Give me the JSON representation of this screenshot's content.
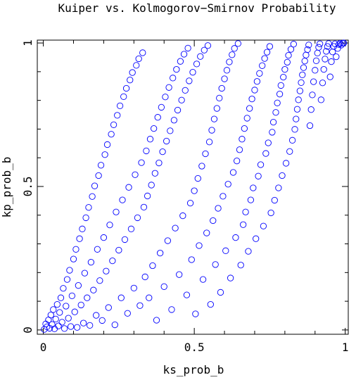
{
  "chart_data": {
    "type": "scatter",
    "title": "Kuiper vs. Kolmogorov−Smirnov Probability",
    "xlabel": "ks_prob_b",
    "ylabel": "kp_prob_b",
    "xlim": [
      -0.02,
      1.01
    ],
    "ylim": [
      -0.015,
      1.01
    ],
    "xticks": [
      {
        "value": 0,
        "label": "0"
      },
      {
        "value": 0.5,
        "label": "0.5"
      },
      {
        "value": 1,
        "label": "1"
      }
    ],
    "yticks": [
      {
        "value": 0,
        "label": "0"
      },
      {
        "value": 0.5,
        "label": "0.5"
      },
      {
        "value": 1,
        "label": "1"
      }
    ],
    "marker": "open-circle",
    "point_color": "#0000ff",
    "grid": false,
    "legend": "none",
    "points": [
      [
        0.003,
        0.002
      ],
      [
        0.008,
        0.021
      ],
      [
        0.012,
        0.011
      ],
      [
        0.017,
        0.035
      ],
      [
        0.021,
        0.006
      ],
      [
        0.025,
        0.052
      ],
      [
        0.029,
        0.019
      ],
      [
        0.033,
        0.071
      ],
      [
        0.037,
        0.004
      ],
      [
        0.041,
        0.038
      ],
      [
        0.046,
        0.089
      ],
      [
        0.05,
        0.014
      ],
      [
        0.054,
        0.061
      ],
      [
        0.058,
        0.112
      ],
      [
        0.062,
        0.027
      ],
      [
        0.066,
        0.145
      ],
      [
        0.07,
        0.005
      ],
      [
        0.075,
        0.083
      ],
      [
        0.079,
        0.176
      ],
      [
        0.083,
        0.041
      ],
      [
        0.087,
        0.208
      ],
      [
        0.091,
        0.012
      ],
      [
        0.095,
        0.119
      ],
      [
        0.1,
        0.247
      ],
      [
        0.104,
        0.063
      ],
      [
        0.108,
        0.281
      ],
      [
        0.112,
        0.009
      ],
      [
        0.116,
        0.155
      ],
      [
        0.12,
        0.318
      ],
      [
        0.125,
        0.087
      ],
      [
        0.129,
        0.352
      ],
      [
        0.133,
        0.024
      ],
      [
        0.137,
        0.198
      ],
      [
        0.141,
        0.391
      ],
      [
        0.145,
        0.112
      ],
      [
        0.15,
        0.427
      ],
      [
        0.154,
        0.016
      ],
      [
        0.158,
        0.236
      ],
      [
        0.162,
        0.465
      ],
      [
        0.166,
        0.139
      ],
      [
        0.17,
        0.502
      ],
      [
        0.175,
        0.051
      ],
      [
        0.179,
        0.281
      ],
      [
        0.183,
        0.538
      ],
      [
        0.187,
        0.172
      ],
      [
        0.191,
        0.574
      ],
      [
        0.195,
        0.033
      ],
      [
        0.2,
        0.322
      ],
      [
        0.204,
        0.611
      ],
      [
        0.208,
        0.205
      ],
      [
        0.212,
        0.646
      ],
      [
        0.216,
        0.078
      ],
      [
        0.22,
        0.366
      ],
      [
        0.225,
        0.682
      ],
      [
        0.229,
        0.241
      ],
      [
        0.233,
        0.715
      ],
      [
        0.237,
        0.018
      ],
      [
        0.241,
        0.411
      ],
      [
        0.245,
        0.748
      ],
      [
        0.25,
        0.278
      ],
      [
        0.254,
        0.781
      ],
      [
        0.258,
        0.112
      ],
      [
        0.262,
        0.453
      ],
      [
        0.266,
        0.813
      ],
      [
        0.27,
        0.315
      ],
      [
        0.275,
        0.842
      ],
      [
        0.279,
        0.058
      ],
      [
        0.283,
        0.497
      ],
      [
        0.287,
        0.871
      ],
      [
        0.291,
        0.352
      ],
      [
        0.295,
        0.897
      ],
      [
        0.3,
        0.146
      ],
      [
        0.304,
        0.541
      ],
      [
        0.308,
        0.922
      ],
      [
        0.312,
        0.391
      ],
      [
        0.316,
        0.945
      ],
      [
        0.32,
        0.085
      ],
      [
        0.325,
        0.583
      ],
      [
        0.329,
        0.966
      ],
      [
        0.333,
        0.428
      ],
      [
        0.337,
        0.185
      ],
      [
        0.341,
        0.624
      ],
      [
        0.345,
        0.467
      ],
      [
        0.35,
        0.112
      ],
      [
        0.354,
        0.665
      ],
      [
        0.358,
        0.505
      ],
      [
        0.362,
        0.224
      ],
      [
        0.366,
        0.702
      ],
      [
        0.37,
        0.546
      ],
      [
        0.375,
        0.034
      ],
      [
        0.379,
        0.741
      ],
      [
        0.383,
        0.582
      ],
      [
        0.387,
        0.268
      ],
      [
        0.391,
        0.776
      ],
      [
        0.395,
        0.621
      ],
      [
        0.4,
        0.151
      ],
      [
        0.404,
        0.812
      ],
      [
        0.408,
        0.658
      ],
      [
        0.412,
        0.311
      ],
      [
        0.416,
        0.845
      ],
      [
        0.42,
        0.694
      ],
      [
        0.425,
        0.071
      ],
      [
        0.429,
        0.878
      ],
      [
        0.433,
        0.731
      ],
      [
        0.437,
        0.355
      ],
      [
        0.441,
        0.908
      ],
      [
        0.445,
        0.766
      ],
      [
        0.45,
        0.193
      ],
      [
        0.454,
        0.936
      ],
      [
        0.458,
        0.801
      ],
      [
        0.462,
        0.398
      ],
      [
        0.466,
        0.961
      ],
      [
        0.47,
        0.835
      ],
      [
        0.475,
        0.122
      ],
      [
        0.479,
        0.982
      ],
      [
        0.483,
        0.868
      ],
      [
        0.487,
        0.442
      ],
      [
        0.491,
        0.245
      ],
      [
        0.495,
        0.898
      ],
      [
        0.5,
        0.485
      ],
      [
        0.504,
        0.056
      ],
      [
        0.508,
        0.927
      ],
      [
        0.512,
        0.528
      ],
      [
        0.516,
        0.294
      ],
      [
        0.52,
        0.953
      ],
      [
        0.525,
        0.571
      ],
      [
        0.529,
        0.176
      ],
      [
        0.533,
        0.975
      ],
      [
        0.537,
        0.614
      ],
      [
        0.541,
        0.338
      ],
      [
        0.545,
        0.991
      ],
      [
        0.55,
        0.655
      ],
      [
        0.554,
        0.089
      ],
      [
        0.558,
        0.696
      ],
      [
        0.562,
        0.381
      ],
      [
        0.566,
        0.735
      ],
      [
        0.57,
        0.228
      ],
      [
        0.575,
        0.772
      ],
      [
        0.579,
        0.424
      ],
      [
        0.583,
        0.808
      ],
      [
        0.587,
        0.131
      ],
      [
        0.591,
        0.842
      ],
      [
        0.595,
        0.466
      ],
      [
        0.6,
        0.875
      ],
      [
        0.604,
        0.276
      ],
      [
        0.608,
        0.905
      ],
      [
        0.612,
        0.508
      ],
      [
        0.616,
        0.934
      ],
      [
        0.62,
        0.181
      ],
      [
        0.625,
        0.959
      ],
      [
        0.629,
        0.549
      ],
      [
        0.633,
        0.981
      ],
      [
        0.637,
        0.322
      ],
      [
        0.641,
        0.589
      ],
      [
        0.645,
        0.998
      ],
      [
        0.65,
        0.628
      ],
      [
        0.654,
        0.226
      ],
      [
        0.658,
        0.665
      ],
      [
        0.662,
        0.367
      ],
      [
        0.666,
        0.702
      ],
      [
        0.67,
        0.411
      ],
      [
        0.675,
        0.738
      ],
      [
        0.679,
        0.274
      ],
      [
        0.683,
        0.772
      ],
      [
        0.687,
        0.453
      ],
      [
        0.691,
        0.805
      ],
      [
        0.695,
        0.495
      ],
      [
        0.7,
        0.836
      ],
      [
        0.704,
        0.318
      ],
      [
        0.708,
        0.866
      ],
      [
        0.712,
        0.536
      ],
      [
        0.716,
        0.894
      ],
      [
        0.72,
        0.576
      ],
      [
        0.725,
        0.921
      ],
      [
        0.729,
        0.362
      ],
      [
        0.733,
        0.946
      ],
      [
        0.737,
        0.615
      ],
      [
        0.741,
        0.968
      ],
      [
        0.745,
        0.652
      ],
      [
        0.75,
        0.988
      ],
      [
        0.754,
        0.408
      ],
      [
        0.758,
        0.689
      ],
      [
        0.762,
        0.724
      ],
      [
        0.766,
        0.452
      ],
      [
        0.77,
        0.758
      ],
      [
        0.775,
        0.791
      ],
      [
        0.779,
        0.495
      ],
      [
        0.783,
        0.822
      ],
      [
        0.787,
        0.852
      ],
      [
        0.791,
        0.538
      ],
      [
        0.795,
        0.881
      ],
      [
        0.8,
        0.908
      ],
      [
        0.804,
        0.581
      ],
      [
        0.808,
        0.933
      ],
      [
        0.812,
        0.957
      ],
      [
        0.816,
        0.622
      ],
      [
        0.82,
        0.978
      ],
      [
        0.825,
        0.661
      ],
      [
        0.829,
        0.996
      ],
      [
        0.833,
        0.699
      ],
      [
        0.837,
        0.735
      ],
      [
        0.841,
        0.769
      ],
      [
        0.845,
        0.802
      ],
      [
        0.85,
        0.833
      ],
      [
        0.854,
        0.862
      ],
      [
        0.858,
        0.889
      ],
      [
        0.862,
        0.914
      ],
      [
        0.866,
        0.937
      ],
      [
        0.87,
        0.958
      ],
      [
        0.875,
        0.977
      ],
      [
        0.879,
        0.993
      ],
      [
        0.883,
        0.712
      ],
      [
        0.887,
        0.768
      ],
      [
        0.891,
        0.819
      ],
      [
        0.895,
        0.865
      ],
      [
        0.9,
        0.905
      ],
      [
        0.904,
        0.938
      ],
      [
        0.908,
        0.965
      ],
      [
        0.912,
        0.985
      ],
      [
        0.916,
        0.997
      ],
      [
        0.92,
        0.802
      ],
      [
        0.925,
        0.861
      ],
      [
        0.929,
        0.908
      ],
      [
        0.933,
        0.944
      ],
      [
        0.937,
        0.971
      ],
      [
        0.941,
        0.988
      ],
      [
        0.945,
        0.998
      ],
      [
        0.95,
        0.882
      ],
      [
        0.954,
        0.935
      ],
      [
        0.958,
        0.969
      ],
      [
        0.962,
        0.988
      ],
      [
        0.966,
        0.997
      ],
      [
        0.97,
        0.952
      ],
      [
        0.975,
        0.981
      ],
      [
        0.979,
        0.995
      ],
      [
        0.983,
        0.999
      ],
      [
        0.987,
        0.993
      ],
      [
        0.991,
        0.999
      ],
      [
        0.995,
        1.0
      ]
    ]
  }
}
